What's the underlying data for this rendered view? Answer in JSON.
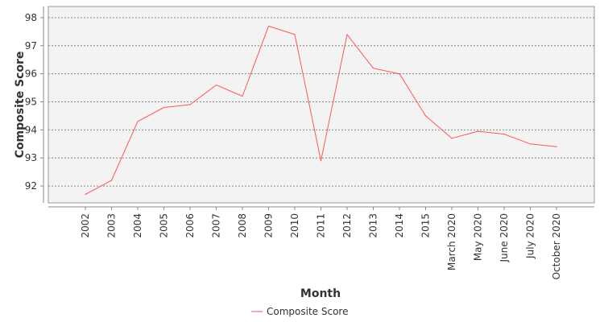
{
  "chart_data": {
    "type": "line",
    "xlabel": "Month",
    "ylabel": "Composite Score",
    "categories": [
      "2002",
      "2003",
      "2004",
      "2005",
      "2006",
      "2007",
      "2008",
      "2009",
      "2010",
      "2011",
      "2012",
      "2013",
      "2014",
      "2015",
      "March 2020",
      "May 2020",
      "June 2020",
      "July 2020",
      "October 2020"
    ],
    "series": [
      {
        "name": "Composite Score",
        "color": "#ff5555",
        "values": [
          91.7,
          92.2,
          94.3,
          94.8,
          94.9,
          95.6,
          95.2,
          97.7,
          97.4,
          92.9,
          97.4,
          96.2,
          96.0,
          94.5,
          93.7,
          93.95,
          93.85,
          93.5,
          93.4
        ]
      }
    ],
    "yticks": [
      92,
      93,
      94,
      95,
      96,
      97,
      98
    ],
    "ylim": [
      91.4,
      98.4
    ],
    "grid": true,
    "grid_style": "dashed",
    "plot_background": "#f3f3f3",
    "legend_position": "bottom"
  }
}
